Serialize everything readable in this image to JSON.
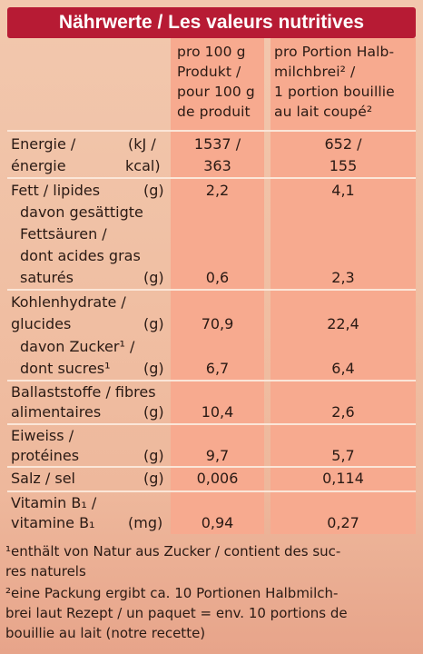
{
  "header": {
    "title": "Nährwerte / Les valeurs nutritives"
  },
  "columns": {
    "per100": [
      "pro 100 g",
      "Produkt /",
      "pour 100 g",
      "de produit"
    ],
    "perPortion": [
      "pro Portion Halb-",
      "milchbrei² /",
      "1 portion bouillie",
      "au lait coupé²"
    ]
  },
  "rows": {
    "energy": {
      "label1": "Energie /",
      "label2": "énergie",
      "unit1": "(kJ /",
      "unit2": "kcal)",
      "v100_1": "1537 /",
      "v100_2": "363",
      "vp_1": "652 /",
      "vp_2": "155"
    },
    "fat": {
      "label": "Fett / lipides",
      "unit": "(g)",
      "v100": "2,2",
      "vp": "4,1"
    },
    "saturated": {
      "l1": "davon gesättigte",
      "l2": "Fettsäuren /",
      "l3": "dont acides gras",
      "l4": "saturés",
      "unit": "(g)",
      "v100": "0,6",
      "vp": "2,3"
    },
    "carbs": {
      "l1": "Kohlenhydrate /",
      "l2": "glucides",
      "unit": "(g)",
      "v100": "70,9",
      "vp": "22,4"
    },
    "sugar": {
      "l1": "davon Zucker¹ /",
      "l2": "dont sucres¹",
      "unit": "(g)",
      "v100": "6,7",
      "vp": "6,4"
    },
    "fibre": {
      "l1": "Ballaststoffe / fibres",
      "l2": "alimentaires",
      "unit": "(g)",
      "v100": "10,4",
      "vp": "2,6"
    },
    "protein": {
      "l1": "Eiweiss /",
      "l2": "protéines",
      "unit": "(g)",
      "v100": "9,7",
      "vp": "5,7"
    },
    "salt": {
      "label": "Salz / sel",
      "unit": "(g)",
      "v100": "0,006",
      "vp": "0,114"
    },
    "vitamin": {
      "l1": "Vitamin B₁ /",
      "l2": "vitamine B₁",
      "unit": "(mg)",
      "v100": "0,94",
      "vp": "0,27"
    }
  },
  "footnotes": {
    "f1a": "¹enthält von Natur aus Zucker / contient des suc-",
    "f1b": "res naturels",
    "f2a": "²eine Packung ergibt ca. 10 Portionen Halbmilch-",
    "f2b": "brei laut Rezept / un paquet = env. 10 portions de",
    "f2c": "bouillie au lait (notre recette)"
  },
  "colors": {
    "header": "#b71b34",
    "column_fill": "#f7aa8f",
    "background": "#f0bfa3"
  }
}
